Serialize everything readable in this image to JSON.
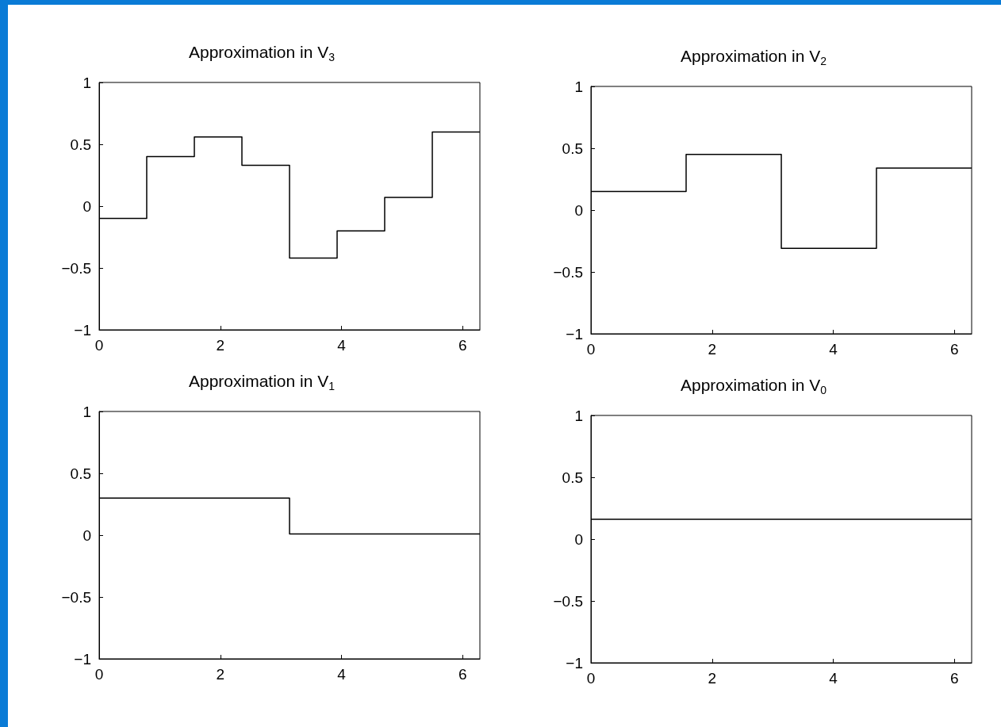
{
  "chart_data": [
    {
      "type": "step",
      "title": "Approximation in V$_{3}$",
      "x": [
        0,
        0.785,
        1.571,
        2.356,
        3.142,
        3.927,
        4.712,
        5.498,
        6.283
      ],
      "series": [
        {
          "color": "#000000",
          "values": [
            -0.1,
            0.4,
            0.56,
            0.33,
            -0.42,
            -0.2,
            0.07,
            0.6,
            0.6
          ]
        }
      ],
      "xlim": [
        0,
        6.283
      ],
      "xticks": [
        0,
        2,
        4,
        6
      ],
      "ylim": [
        -1,
        1
      ],
      "yticks": [
        -1,
        -0.5,
        0,
        0.5,
        1
      ],
      "grid": false
    },
    {
      "type": "step",
      "title": "Approximation in V$_{2}$",
      "x": [
        0,
        1.571,
        3.142,
        4.712,
        6.283
      ],
      "series": [
        {
          "color": "#000000",
          "values": [
            0.15,
            0.45,
            -0.31,
            0.34,
            0.34
          ]
        }
      ],
      "xlim": [
        0,
        6.283
      ],
      "xticks": [
        0,
        2,
        4,
        6
      ],
      "ylim": [
        -1,
        1
      ],
      "yticks": [
        -1,
        -0.5,
        0,
        0.5,
        1
      ],
      "grid": false
    },
    {
      "type": "step",
      "title": "Approximation in V$_{1}$",
      "x": [
        0,
        3.142,
        6.283
      ],
      "series": [
        {
          "color": "#000000",
          "values": [
            0.3,
            0.01,
            0.01
          ]
        }
      ],
      "xlim": [
        0,
        6.283
      ],
      "xticks": [
        0,
        2,
        4,
        6
      ],
      "ylim": [
        -1,
        1
      ],
      "yticks": [
        -1,
        -0.5,
        0,
        0.5,
        1
      ],
      "grid": false
    },
    {
      "type": "step",
      "title": "Approximation in V$_{0}$",
      "x": [
        0,
        6.283
      ],
      "series": [
        {
          "color": "#000000",
          "values": [
            0.16,
            0.16
          ]
        }
      ],
      "xlim": [
        0,
        6.283
      ],
      "xticks": [
        0,
        2,
        4,
        6
      ],
      "ylim": [
        -1,
        1
      ],
      "yticks": [
        -1,
        -0.5,
        0,
        0.5,
        1
      ],
      "grid": false
    }
  ]
}
